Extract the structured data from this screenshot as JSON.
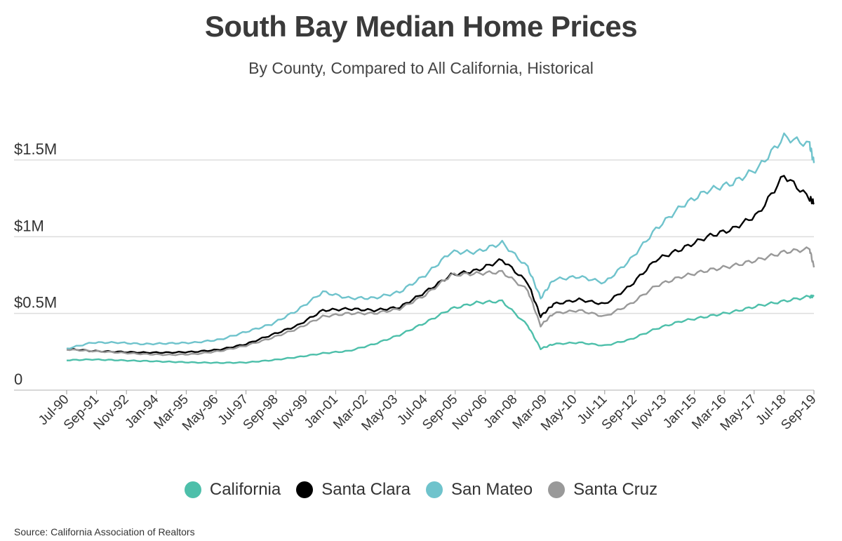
{
  "header": {
    "title": "South Bay Median Home Prices",
    "subtitle": "By County, Compared to All California, Historical"
  },
  "source": "Source:  California Association of Realtors",
  "chart_data": {
    "type": "line",
    "title": "South Bay Median Home Prices",
    "subtitle": "By County, Compared to All California, Historical",
    "xlabel": "",
    "ylabel": "",
    "x_ticks": [
      "Jul-90",
      "Sep-91",
      "Nov-92",
      "Jan-94",
      "Mar-95",
      "May-96",
      "Jul-97",
      "Sep-98",
      "Nov-99",
      "Jan-01",
      "Mar-02",
      "May-03",
      "Jul-04",
      "Sep-05",
      "Nov-06",
      "Jan-08",
      "Mar-09",
      "May-10",
      "Jul-11",
      "Sep-12",
      "Nov-13",
      "Jan-15",
      "Mar-16",
      "May-17",
      "Jul-18",
      "Sep-19"
    ],
    "y_ticks": [
      {
        "value": 0,
        "label": "0"
      },
      {
        "value": 500000,
        "label": "$0.5M"
      },
      {
        "value": 1000000,
        "label": "$1M"
      },
      {
        "value": 1500000,
        "label": "$1.5M"
      }
    ],
    "ylim": [
      0,
      1500000
    ],
    "grid": true,
    "legend_position": "bottom",
    "x": [
      "Jul-90",
      "Jul-91",
      "Jul-92",
      "Jul-93",
      "Jul-94",
      "Jul-95",
      "Jul-96",
      "Jul-97",
      "Jul-98",
      "Jul-99",
      "Jul-00",
      "Jul-01",
      "Jul-02",
      "Jul-03",
      "Jul-04",
      "Jul-05",
      "Jul-06",
      "Jul-07",
      "Jul-08",
      "Jan-09",
      "Jul-09",
      "Jul-10",
      "Jul-11",
      "Jul-12",
      "Jul-13",
      "Jul-14",
      "Jul-15",
      "Jul-16",
      "Jul-17",
      "Jul-18",
      "Jul-19",
      "Sep-19"
    ],
    "series": [
      {
        "name": "California",
        "color": "#4dbfaa",
        "values": [
          195000,
          200000,
          195000,
          190000,
          185000,
          180000,
          178000,
          180000,
          195000,
          215000,
          240000,
          255000,
          300000,
          360000,
          440000,
          530000,
          570000,
          580000,
          420000,
          270000,
          300000,
          310000,
          290000,
          330000,
          400000,
          450000,
          480000,
          510000,
          550000,
          580000,
          610000,
          610000
        ]
      },
      {
        "name": "Santa Clara",
        "color": "#000000",
        "values": [
          270000,
          255000,
          250000,
          245000,
          245000,
          250000,
          265000,
          300000,
          360000,
          420000,
          520000,
          530000,
          520000,
          540000,
          640000,
          750000,
          780000,
          850000,
          700000,
          480000,
          560000,
          590000,
          560000,
          680000,
          850000,
          920000,
          1000000,
          1050000,
          1150000,
          1400000,
          1250000,
          1220000
        ]
      },
      {
        "name": "San Mateo",
        "color": "#6fc3cc",
        "values": [
          270000,
          310000,
          310000,
          300000,
          305000,
          310000,
          330000,
          380000,
          430000,
          520000,
          640000,
          600000,
          600000,
          640000,
          750000,
          900000,
          900000,
          960000,
          800000,
          600000,
          720000,
          740000,
          700000,
          850000,
          1050000,
          1200000,
          1300000,
          1350000,
          1450000,
          1650000,
          1600000,
          1480000
        ]
      },
      {
        "name": "Santa Cruz",
        "color": "#999999",
        "values": [
          265000,
          255000,
          245000,
          235000,
          230000,
          235000,
          255000,
          290000,
          340000,
          400000,
          480000,
          500000,
          500000,
          530000,
          620000,
          750000,
          760000,
          770000,
          650000,
          420000,
          500000,
          520000,
          480000,
          560000,
          680000,
          740000,
          780000,
          810000,
          850000,
          900000,
          920000,
          800000
        ]
      }
    ]
  }
}
